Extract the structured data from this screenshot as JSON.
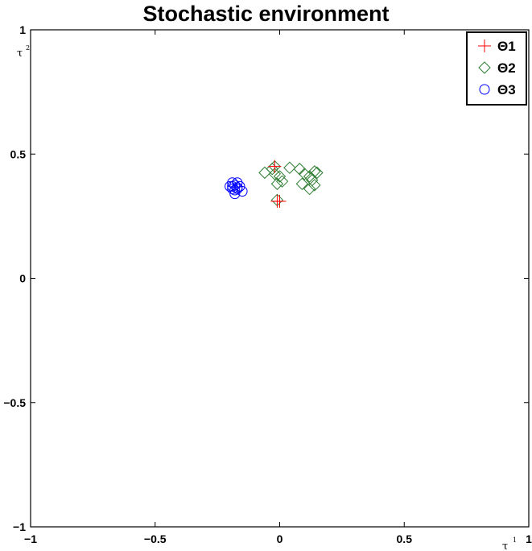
{
  "chart_data": {
    "type": "scatter",
    "title": "Stochastic environment",
    "xlabel": "τ",
    "xlabel_sup": "1",
    "ylabel": "τ",
    "ylabel_sup": "2",
    "xlim": [
      -1,
      1
    ],
    "ylim": [
      -1,
      1
    ],
    "xticks": [
      -1,
      -0.5,
      0,
      0.5,
      1
    ],
    "yticks": [
      -1,
      -0.5,
      0,
      0.5,
      1
    ],
    "xtick_labels": [
      "−1",
      "−0.5",
      "0",
      "0.5",
      "1"
    ],
    "ytick_labels": [
      "−1",
      "−0.5",
      "0",
      "0.5",
      "1"
    ],
    "grid": false,
    "legend_position": "top-right",
    "series": [
      {
        "name": "Θ1",
        "marker": "plus",
        "color": "#ff0000",
        "points": [
          [
            -0.02,
            0.45
          ],
          [
            -0.01,
            0.31
          ],
          [
            0.0,
            0.31
          ]
        ]
      },
      {
        "name": "Θ2",
        "marker": "diamond",
        "color": "#2e7d32",
        "points": [
          [
            -0.06,
            0.425
          ],
          [
            -0.03,
            0.44
          ],
          [
            -0.02,
            0.42
          ],
          [
            -0.01,
            0.38
          ],
          [
            0.0,
            0.41
          ],
          [
            0.01,
            0.39
          ],
          [
            0.04,
            0.445
          ],
          [
            0.08,
            0.44
          ],
          [
            0.09,
            0.38
          ],
          [
            0.1,
            0.42
          ],
          [
            0.12,
            0.41
          ],
          [
            0.13,
            0.395
          ],
          [
            0.14,
            0.375
          ],
          [
            0.15,
            0.425
          ],
          [
            0.14,
            0.43
          ],
          [
            0.12,
            0.36
          ],
          [
            -0.01,
            0.315
          ],
          [
            -0.02,
            0.45
          ]
        ]
      },
      {
        "name": "Θ3",
        "marker": "circle",
        "color": "#0000ff",
        "points": [
          [
            -0.2,
            0.37
          ],
          [
            -0.19,
            0.385
          ],
          [
            -0.19,
            0.36
          ],
          [
            -0.18,
            0.355
          ],
          [
            -0.18,
            0.375
          ],
          [
            -0.17,
            0.365
          ],
          [
            -0.17,
            0.385
          ],
          [
            -0.18,
            0.34
          ],
          [
            -0.16,
            0.37
          ],
          [
            -0.15,
            0.35
          ],
          [
            -0.17,
            0.36
          ],
          [
            -0.19,
            0.37
          ]
        ]
      }
    ]
  }
}
